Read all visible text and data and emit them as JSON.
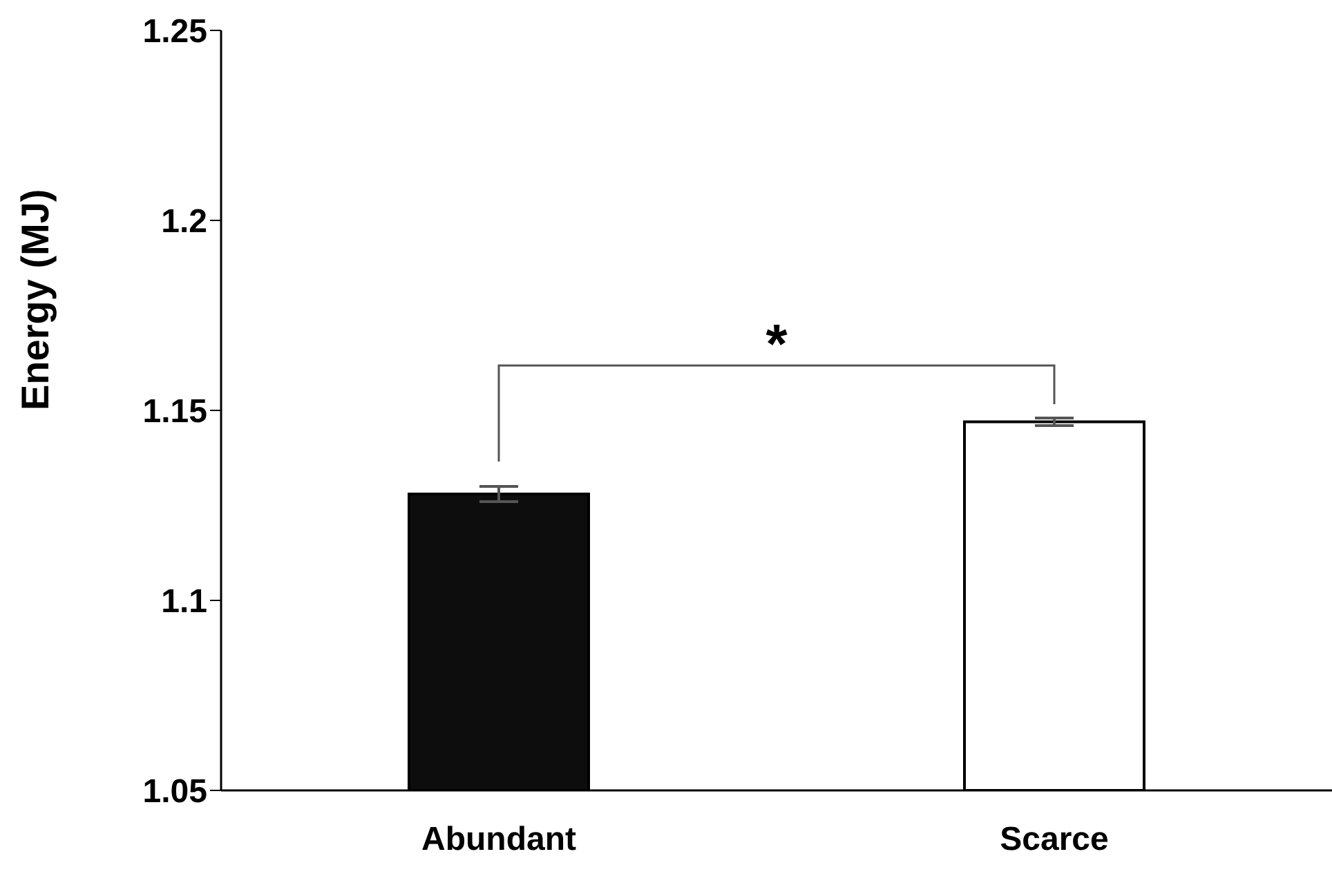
{
  "chart_data": {
    "type": "bar",
    "ylabel": "Energy (MJ)",
    "categories": [
      "Abundant",
      "Scarce"
    ],
    "values": [
      1.128,
      1.147
    ],
    "colors": [
      "#0d0d0d",
      "#ffffff"
    ],
    "errors": [
      0.002,
      0.001
    ],
    "ylim": [
      1.05,
      1.25
    ],
    "yticks": [
      1.05,
      1.1,
      1.15,
      1.2,
      1.25
    ],
    "grid": false,
    "annotations": [
      "*"
    ]
  }
}
